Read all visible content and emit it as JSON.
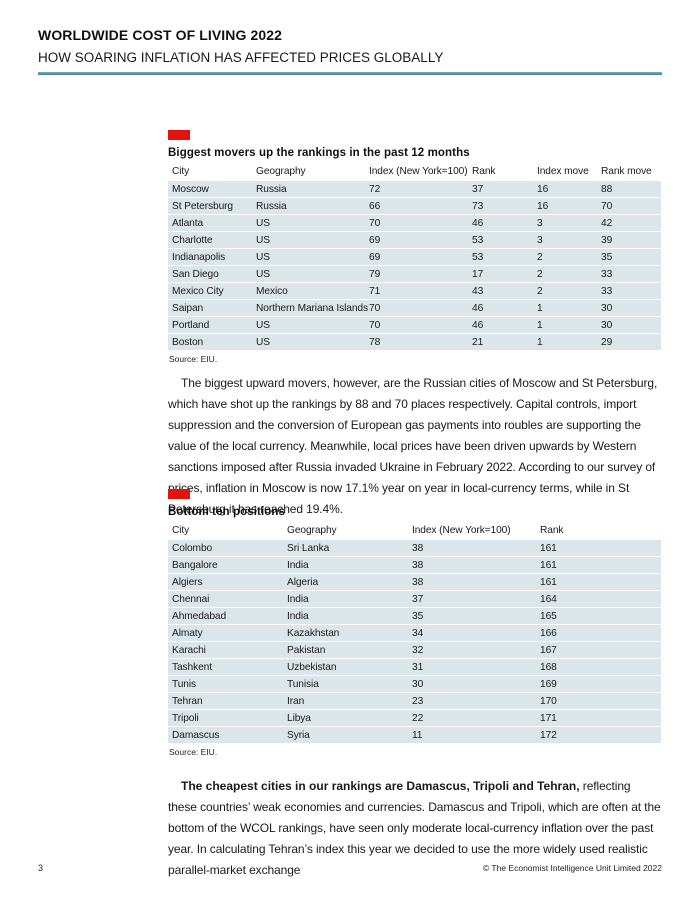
{
  "header": {
    "title_line1": "WORLDWIDE COST OF LIVING 2022",
    "title_line2": "HOW SOARING INFLATION HAS AFFECTED PRICES GLOBALLY"
  },
  "colors": {
    "accent_red": "#e3120b",
    "rule_blue": "#4e87a0",
    "table_row_bg": "#dbe6ea",
    "text": "#1a1a1a"
  },
  "table1": {
    "title": "Biggest movers up the rankings in the past 12 months",
    "columns": [
      "City",
      "Geography",
      "Index (New York=100)",
      "Rank",
      "Index move",
      "Rank move"
    ],
    "rows": [
      [
        "Moscow",
        "Russia",
        "72",
        "37",
        "16",
        "88"
      ],
      [
        "St Petersburg",
        "Russia",
        "66",
        "73",
        "16",
        "70"
      ],
      [
        "Atlanta",
        "US",
        "70",
        "46",
        "3",
        "42"
      ],
      [
        "Charlotte",
        "US",
        "69",
        "53",
        "3",
        "39"
      ],
      [
        "Indianapolis",
        "US",
        "69",
        "53",
        "2",
        "35"
      ],
      [
        "San Diego",
        "US",
        "79",
        "17",
        "2",
        "33"
      ],
      [
        "Mexico City",
        "Mexico",
        "71",
        "43",
        "2",
        "33"
      ],
      [
        "Saipan",
        "Northern Mariana Islands",
        "70",
        "46",
        "1",
        "30"
      ],
      [
        "Portland",
        "US",
        "70",
        "46",
        "1",
        "30"
      ],
      [
        "Boston",
        "US",
        "78",
        "21",
        "1",
        "29"
      ]
    ],
    "source": "Source: EIU."
  },
  "paragraph1": "The biggest upward movers, however, are the Russian cities of Moscow and St Petersburg, which have shot up the rankings by 88 and 70 places respectively. Capital controls, import suppression and the conversion of European gas payments into roubles are supporting the value of the local currency. Meanwhile, local prices have been driven upwards by Western sanctions imposed after Russia invaded Ukraine in February 2022. According to our survey of prices, inflation in Moscow is now 17.1% year on year in local-currency terms, while in St Petersburg it has reached 19.4%.",
  "table2": {
    "title": "Bottom ten positions",
    "columns": [
      "City",
      "Geography",
      "Index (New York=100)",
      "Rank"
    ],
    "rows": [
      [
        "Colombo",
        "Sri Lanka",
        "38",
        "161"
      ],
      [
        "Bangalore",
        "India",
        "38",
        "161"
      ],
      [
        "Algiers",
        "Algeria",
        "38",
        "161"
      ],
      [
        "Chennai",
        "India",
        "37",
        "164"
      ],
      [
        "Ahmedabad",
        "India",
        "35",
        "165"
      ],
      [
        "Almaty",
        "Kazakhstan",
        "34",
        "166"
      ],
      [
        "Karachi",
        "Pakistan",
        "32",
        "167"
      ],
      [
        "Tashkent",
        "Uzbekistan",
        "31",
        "168"
      ],
      [
        "Tunis",
        "Tunisia",
        "30",
        "169"
      ],
      [
        "Tehran",
        "Iran",
        "23",
        "170"
      ],
      [
        "Tripoli",
        "Libya",
        "22",
        "171"
      ],
      [
        "Damascus",
        "Syria",
        "11",
        "172"
      ]
    ],
    "source": "Source: EIU."
  },
  "paragraph2_bold": "The cheapest cities in our rankings are Damascus, Tripoli and Tehran,",
  "paragraph2_rest": " reflecting these countries’ weak economies and currencies. Damascus and Tripoli, which are often at the bottom of the WCOL rankings, have seen only moderate local-currency inflation over the past year. In calculating Tehran’s index this year we decided to use the more widely used realistic parallel-market exchange",
  "footer": {
    "page_number": "3",
    "copyright": "© The Economist Intelligence Unit Limited 2022"
  }
}
